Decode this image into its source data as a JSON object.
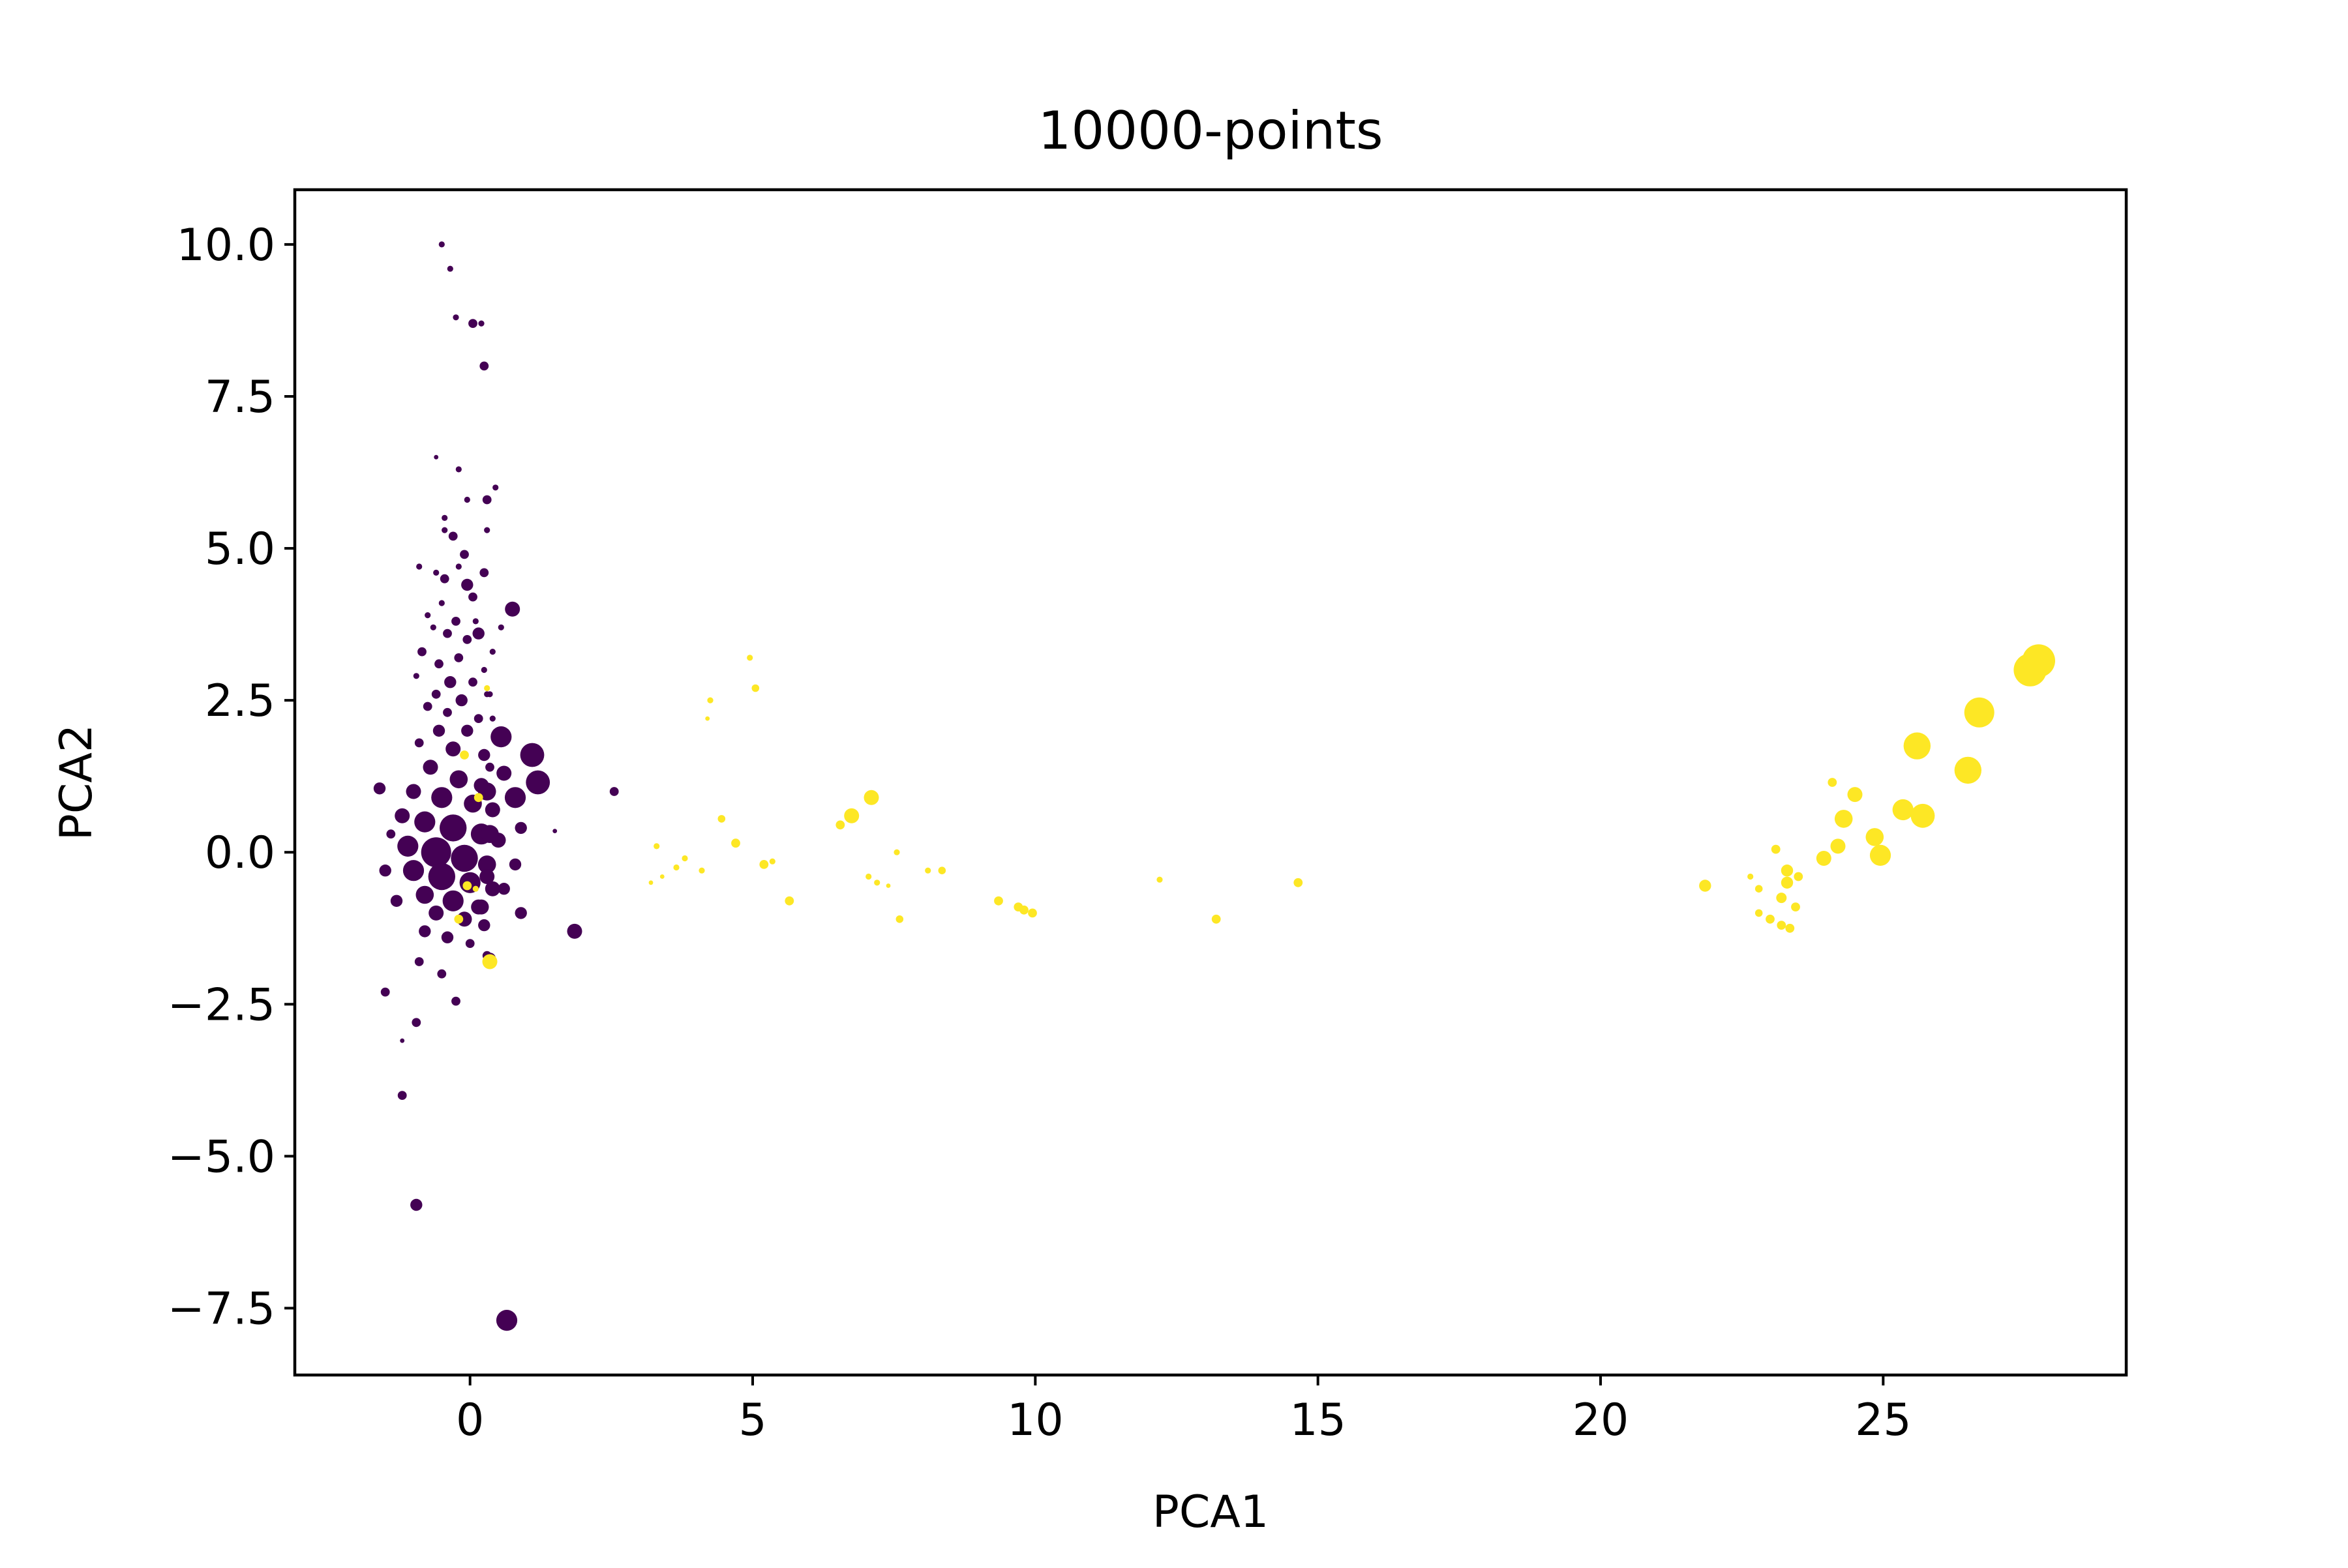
{
  "colors": {
    "class0": "#440154",
    "class1": "#fde725",
    "axes": "#000000",
    "background": "#ffffff"
  },
  "chart_data": {
    "type": "scatter",
    "title": "10000-points",
    "xlabel": "PCA1",
    "ylabel": "PCA2",
    "xlim": [
      -3.1,
      29.3
    ],
    "ylim": [
      -8.6,
      10.9
    ],
    "xticks": [
      0,
      5,
      10,
      15,
      20,
      25
    ],
    "xtick_labels": [
      "0",
      "5",
      "10",
      "15",
      "20",
      "25"
    ],
    "yticks": [
      -7.5,
      -5.0,
      -2.5,
      0.0,
      2.5,
      5.0,
      7.5,
      10.0
    ],
    "ytick_labels": [
      "−7.5",
      "−5.0",
      "−2.5",
      "0.0",
      "2.5",
      "5.0",
      "7.5",
      "10.0"
    ],
    "grid": false,
    "legend": "none",
    "series": [
      {
        "color_key": "class0",
        "points": [
          [
            -0.5,
            10.0,
            2
          ],
          [
            -0.35,
            9.6,
            2
          ],
          [
            -0.25,
            8.8,
            2
          ],
          [
            0.05,
            8.7,
            3
          ],
          [
            0.2,
            8.7,
            2
          ],
          [
            0.25,
            8.0,
            3
          ],
          [
            -0.6,
            6.5,
            1.5
          ],
          [
            -0.2,
            6.3,
            2
          ],
          [
            -0.05,
            5.8,
            2
          ],
          [
            0.3,
            5.8,
            3
          ],
          [
            0.45,
            6.0,
            2
          ],
          [
            -0.45,
            5.5,
            2
          ],
          [
            -0.3,
            5.2,
            3
          ],
          [
            0.3,
            5.3,
            2
          ],
          [
            -0.1,
            4.9,
            3
          ],
          [
            -0.6,
            4.6,
            2
          ],
          [
            -0.9,
            4.7,
            2
          ],
          [
            -0.45,
            4.5,
            3
          ],
          [
            -0.05,
            4.4,
            4
          ],
          [
            0.05,
            4.2,
            3
          ],
          [
            -0.5,
            4.1,
            2
          ],
          [
            -0.75,
            3.9,
            2
          ],
          [
            -0.25,
            3.8,
            3
          ],
          [
            0.1,
            3.8,
            2
          ],
          [
            0.55,
            3.7,
            2
          ],
          [
            -0.4,
            3.6,
            3
          ],
          [
            -0.05,
            3.5,
            3
          ],
          [
            0.15,
            3.6,
            4
          ],
          [
            -0.85,
            3.3,
            3
          ],
          [
            -0.55,
            3.1,
            3
          ],
          [
            -0.2,
            3.2,
            3
          ],
          [
            0.25,
            3.0,
            2
          ],
          [
            -0.95,
            2.9,
            2
          ],
          [
            -0.35,
            2.8,
            4
          ],
          [
            0.05,
            2.8,
            3
          ],
          [
            -0.6,
            2.6,
            3
          ],
          [
            0.35,
            2.6,
            2
          ],
          [
            -0.15,
            2.5,
            4
          ],
          [
            -0.75,
            2.4,
            3
          ],
          [
            -0.4,
            2.3,
            3
          ],
          [
            0.15,
            2.2,
            3
          ],
          [
            -0.55,
            2.0,
            4
          ],
          [
            -0.05,
            2.0,
            4
          ],
          [
            -0.9,
            1.8,
            3
          ],
          [
            -0.3,
            1.7,
            5
          ],
          [
            0.25,
            1.6,
            4
          ],
          [
            0.35,
            1.4,
            3
          ],
          [
            -0.7,
            1.4,
            5
          ],
          [
            -0.2,
            1.2,
            6
          ],
          [
            0.2,
            1.1,
            5
          ],
          [
            -1.0,
            1.0,
            5
          ],
          [
            -0.5,
            0.9,
            7
          ],
          [
            0.05,
            0.8,
            6
          ],
          [
            0.4,
            0.7,
            5
          ],
          [
            -1.2,
            0.6,
            5
          ],
          [
            -0.8,
            0.5,
            7
          ],
          [
            -0.3,
            0.4,
            9
          ],
          [
            0.2,
            0.3,
            7
          ],
          [
            0.5,
            0.2,
            5
          ],
          [
            -1.1,
            0.1,
            7
          ],
          [
            -0.6,
            0.0,
            10
          ],
          [
            -0.1,
            -0.1,
            9
          ],
          [
            0.3,
            -0.2,
            6
          ],
          [
            -1.0,
            -0.3,
            7
          ],
          [
            -0.5,
            -0.4,
            9
          ],
          [
            0.0,
            -0.5,
            7
          ],
          [
            0.4,
            -0.6,
            5
          ],
          [
            -0.8,
            -0.7,
            6
          ],
          [
            -0.3,
            -0.8,
            7
          ],
          [
            0.15,
            -0.9,
            5
          ],
          [
            -0.6,
            -1.0,
            5
          ],
          [
            -0.1,
            -1.1,
            5
          ],
          [
            0.25,
            -1.2,
            4
          ],
          [
            -0.8,
            -1.3,
            4
          ],
          [
            -0.4,
            -1.4,
            4
          ],
          [
            0.0,
            -1.5,
            3
          ],
          [
            0.3,
            -1.7,
            3
          ],
          [
            -0.9,
            -1.8,
            3
          ],
          [
            -0.5,
            -2.0,
            3
          ],
          [
            -1.5,
            -2.3,
            3
          ],
          [
            -0.25,
            -2.45,
            3
          ],
          [
            -0.95,
            -2.8,
            3
          ],
          [
            -1.2,
            -3.1,
            1.5
          ],
          [
            -1.2,
            -4.0,
            3
          ],
          [
            -0.95,
            -5.8,
            4
          ],
          [
            0.65,
            -7.7,
            7
          ],
          [
            -1.6,
            1.05,
            4
          ],
          [
            -1.4,
            0.3,
            3
          ],
          [
            -1.5,
            -0.3,
            4
          ],
          [
            -1.3,
            -0.8,
            4
          ],
          [
            0.6,
            1.3,
            5
          ],
          [
            0.8,
            0.9,
            7
          ],
          [
            0.9,
            0.4,
            4
          ],
          [
            0.8,
            -0.2,
            4
          ],
          [
            0.6,
            -0.6,
            4
          ],
          [
            0.55,
            1.9,
            7
          ],
          [
            0.3,
            1.0,
            6
          ],
          [
            0.35,
            0.3,
            6
          ],
          [
            0.3,
            -0.4,
            5
          ],
          [
            0.2,
            -0.9,
            5
          ],
          [
            1.1,
            1.6,
            8
          ],
          [
            1.2,
            1.15,
            8
          ],
          [
            1.85,
            -1.3,
            5
          ],
          [
            0.75,
            4.0,
            5
          ],
          [
            0.35,
            -1.75,
            4
          ],
          [
            0.3,
            2.6,
            2
          ],
          [
            0.4,
            2.2,
            2
          ],
          [
            1.5,
            0.35,
            1.5
          ],
          [
            2.55,
            1.0,
            3
          ],
          [
            0.9,
            -1.0,
            4
          ],
          [
            -0.45,
            5.3,
            2
          ],
          [
            -0.2,
            4.7,
            2
          ],
          [
            0.25,
            4.6,
            3
          ],
          [
            -0.65,
            3.7,
            2
          ],
          [
            0.4,
            3.3,
            2
          ]
        ]
      },
      {
        "color_key": "class1",
        "points": [
          [
            0.3,
            2.7,
            2
          ],
          [
            0.35,
            -1.8,
            5
          ],
          [
            -0.1,
            1.6,
            3
          ],
          [
            0.15,
            0.9,
            3
          ],
          [
            -0.05,
            -0.55,
            3
          ],
          [
            -0.2,
            -1.1,
            3
          ],
          [
            0.1,
            -0.6,
            2
          ],
          [
            3.2,
            -0.5,
            1.5
          ],
          [
            3.3,
            0.1,
            2
          ],
          [
            3.4,
            -0.4,
            1.5
          ],
          [
            3.65,
            -0.25,
            2
          ],
          [
            3.8,
            -0.1,
            2
          ],
          [
            4.1,
            -0.3,
            2
          ],
          [
            4.2,
            2.2,
            1.5
          ],
          [
            4.25,
            2.5,
            2
          ],
          [
            4.45,
            0.55,
            2.5
          ],
          [
            4.7,
            0.15,
            3
          ],
          [
            4.95,
            3.2,
            2
          ],
          [
            5.05,
            2.7,
            2.5
          ],
          [
            5.2,
            -0.2,
            3
          ],
          [
            5.35,
            -0.15,
            2
          ],
          [
            5.65,
            -0.8,
            3
          ],
          [
            6.55,
            0.45,
            3
          ],
          [
            6.75,
            0.6,
            5
          ],
          [
            7.1,
            0.9,
            5
          ],
          [
            7.05,
            -0.4,
            2
          ],
          [
            7.2,
            -0.5,
            2
          ],
          [
            7.4,
            -0.55,
            1.5
          ],
          [
            7.55,
            0.0,
            2
          ],
          [
            7.6,
            -1.1,
            2.5
          ],
          [
            8.1,
            -0.3,
            2
          ],
          [
            8.35,
            -0.3,
            2.5
          ],
          [
            9.35,
            -0.8,
            3
          ],
          [
            9.7,
            -0.9,
            3
          ],
          [
            9.8,
            -0.95,
            3
          ],
          [
            9.95,
            -1.0,
            3
          ],
          [
            12.2,
            -0.45,
            2
          ],
          [
            13.2,
            -1.1,
            3
          ],
          [
            14.65,
            -0.5,
            3
          ],
          [
            21.85,
            -0.55,
            4
          ],
          [
            22.65,
            -0.4,
            2
          ],
          [
            22.8,
            -0.6,
            2.5
          ],
          [
            22.8,
            -1.0,
            2.5
          ],
          [
            23.0,
            -1.1,
            3
          ],
          [
            23.2,
            -1.2,
            3
          ],
          [
            23.35,
            -1.25,
            3
          ],
          [
            23.1,
            0.05,
            3
          ],
          [
            23.2,
            -0.75,
            3.5
          ],
          [
            23.3,
            -0.5,
            4
          ],
          [
            23.3,
            -0.3,
            4
          ],
          [
            23.5,
            -0.4,
            3
          ],
          [
            23.45,
            -0.9,
            3
          ],
          [
            23.95,
            -0.1,
            5
          ],
          [
            24.1,
            1.15,
            3
          ],
          [
            24.2,
            0.1,
            5
          ],
          [
            24.3,
            0.55,
            6
          ],
          [
            24.5,
            0.95,
            5
          ],
          [
            24.85,
            0.25,
            6
          ],
          [
            24.95,
            -0.05,
            7
          ],
          [
            25.35,
            0.7,
            7
          ],
          [
            25.6,
            1.75,
            9
          ],
          [
            25.7,
            0.6,
            8
          ],
          [
            26.5,
            1.35,
            9
          ],
          [
            26.7,
            2.3,
            10
          ],
          [
            27.6,
            3.0,
            11
          ],
          [
            27.75,
            3.15,
            11
          ]
        ]
      }
    ]
  }
}
